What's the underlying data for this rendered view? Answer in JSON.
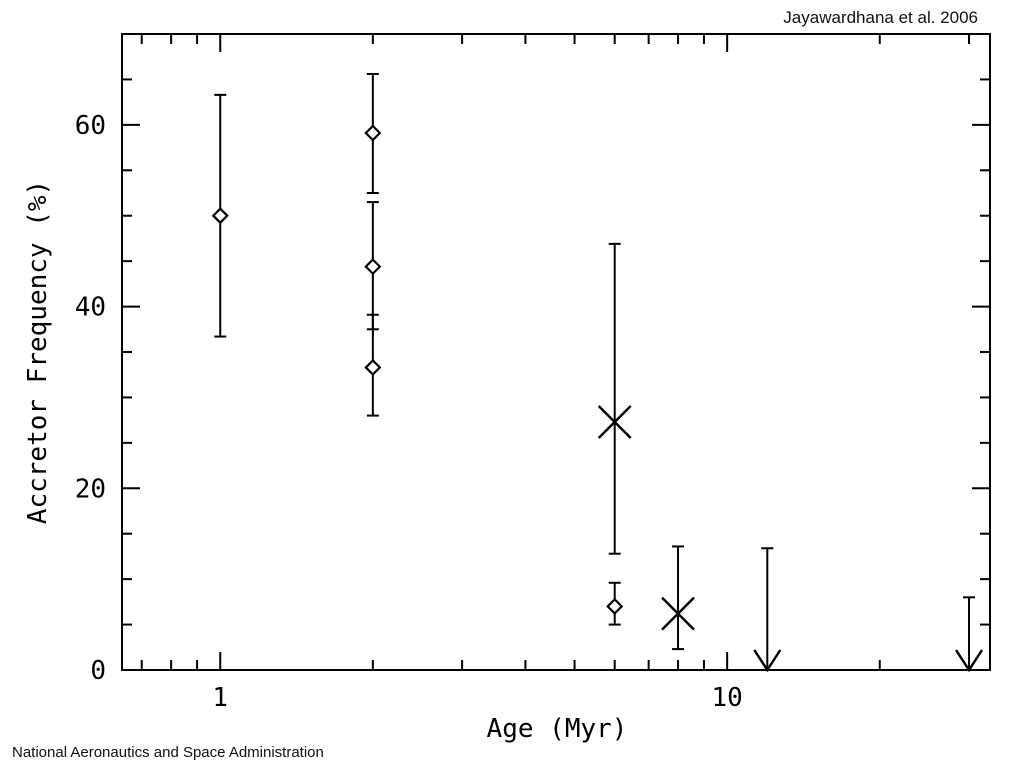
{
  "credits": {
    "top": "Jayawardhana et al. 2006",
    "bottom": "National Aeronautics and Space Administration"
  },
  "chart_data": {
    "type": "scatter",
    "xlabel": "Age (Myr)",
    "ylabel": "Accretor Frequency (%)",
    "xscale": "log",
    "xlim": [
      0.64,
      33
    ],
    "ylim": [
      0,
      70
    ],
    "x_ticks": [
      {
        "value": 1,
        "label": "1"
      },
      {
        "value": 10,
        "label": "10"
      }
    ],
    "y_ticks": [
      {
        "value": 0,
        "label": "0"
      },
      {
        "value": 20,
        "label": "20"
      },
      {
        "value": 40,
        "label": "40"
      },
      {
        "value": 60,
        "label": "60"
      }
    ],
    "grid": false,
    "series": [
      {
        "marker": "diamond",
        "points": [
          {
            "x": 1,
            "y": 50,
            "ylow": 36.7,
            "yhigh": 63.3
          },
          {
            "x": 2,
            "y": 59.1,
            "ylow": 52.5,
            "yhigh": 65.6
          },
          {
            "x": 2,
            "y": 44.4,
            "ylow": 37.5,
            "yhigh": 51.5
          },
          {
            "x": 2,
            "y": 33.3,
            "ylow": 28.0,
            "yhigh": 39.1
          },
          {
            "x": 6,
            "y": 7.0,
            "ylow": 5.0,
            "yhigh": 9.6
          }
        ]
      },
      {
        "marker": "cross",
        "points": [
          {
            "x": 6,
            "y": 27.3,
            "ylow": 12.8,
            "yhigh": 46.9
          },
          {
            "x": 8,
            "y": 6.2,
            "ylow": 2.3,
            "yhigh": 13.6
          }
        ]
      },
      {
        "marker": "upper-limit-arrow",
        "points": [
          {
            "x": 12,
            "y": 13.4
          },
          {
            "x": 30,
            "y": 8.0
          }
        ]
      }
    ]
  }
}
